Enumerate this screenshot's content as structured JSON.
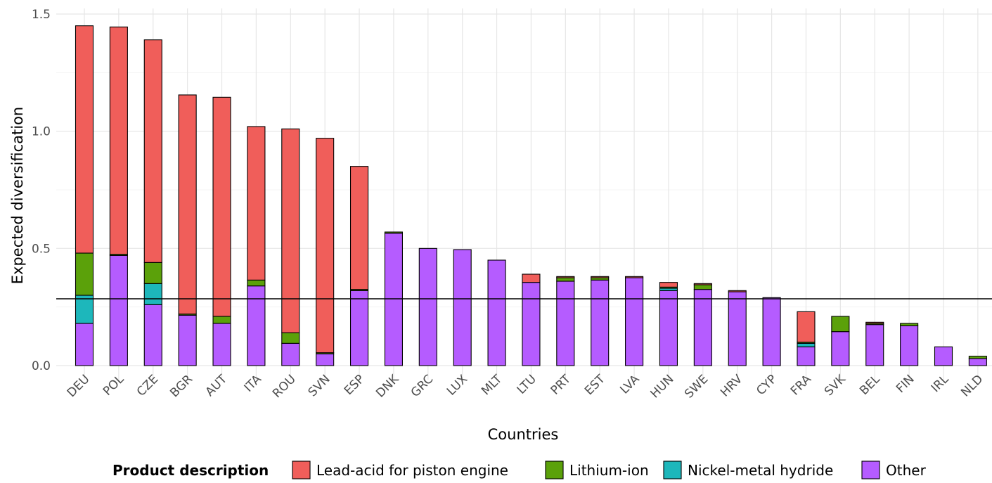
{
  "chart_data": {
    "type": "bar",
    "stacked": true,
    "xlabel": "Countries",
    "ylabel": "Expected diversification",
    "ylim": [
      0,
      1.5
    ],
    "yticks": [
      0.0,
      0.5,
      1.0,
      1.5
    ],
    "ytick_labels": [
      "0.0",
      "0.5",
      "1.0",
      "1.5"
    ],
    "grid": true,
    "reference_line": 0.285,
    "legend_position": "bottom",
    "legend_title": "Product description",
    "categories": [
      "DEU",
      "POL",
      "CZE",
      "BGR",
      "AUT",
      "ITA",
      "ROU",
      "SVN",
      "ESP",
      "DNK",
      "GRC",
      "LUX",
      "MLT",
      "LTU",
      "PRT",
      "EST",
      "LVA",
      "HUN",
      "SWE",
      "HRV",
      "CYP",
      "FRA",
      "SVK",
      "BEL",
      "FIN",
      "IRL",
      "NLD"
    ],
    "series": [
      {
        "name": "Other",
        "color": "#B55CFF",
        "values": [
          0.18,
          0.47,
          0.26,
          0.215,
          0.18,
          0.34,
          0.095,
          0.05,
          0.32,
          0.565,
          0.5,
          0.495,
          0.45,
          0.355,
          0.36,
          0.365,
          0.375,
          0.32,
          0.325,
          0.315,
          0.29,
          0.08,
          0.145,
          0.175,
          0.17,
          0.08,
          0.03
        ]
      },
      {
        "name": "Nickel-metal hydride",
        "color": "#1DB7BB",
        "values": [
          0.12,
          0.0,
          0.09,
          0.0,
          0.0,
          0.0,
          0.0,
          0.0,
          0.0,
          0.0,
          0.0,
          0.0,
          0.0,
          0.0,
          0.0,
          0.0,
          0.0,
          0.01,
          0.0,
          0.0,
          0.0,
          0.015,
          0.0,
          0.0,
          0.0,
          0.0,
          0.0
        ]
      },
      {
        "name": "Lithium-ion",
        "color": "#5BA10A",
        "values": [
          0.18,
          0.005,
          0.09,
          0.005,
          0.03,
          0.025,
          0.045,
          0.005,
          0.005,
          0.005,
          0.0,
          0.0,
          0.0,
          0.0,
          0.015,
          0.01,
          0.0,
          0.005,
          0.02,
          0.0,
          0.0,
          0.005,
          0.065,
          0.005,
          0.01,
          0.0,
          0.01
        ]
      },
      {
        "name": "Lead-acid for piston engine",
        "color": "#F05E5A",
        "values": [
          0.97,
          0.97,
          0.95,
          0.935,
          0.935,
          0.655,
          0.87,
          0.915,
          0.525,
          0.0,
          0.0,
          0.0,
          0.0,
          0.035,
          0.005,
          0.005,
          0.005,
          0.02,
          0.005,
          0.005,
          0.0,
          0.13,
          0.0,
          0.005,
          0.0,
          0.0,
          0.0
        ]
      }
    ],
    "legend_order": [
      "Lead-acid for piston engine",
      "Lithium-ion",
      "Nickel-metal hydride",
      "Other"
    ]
  }
}
